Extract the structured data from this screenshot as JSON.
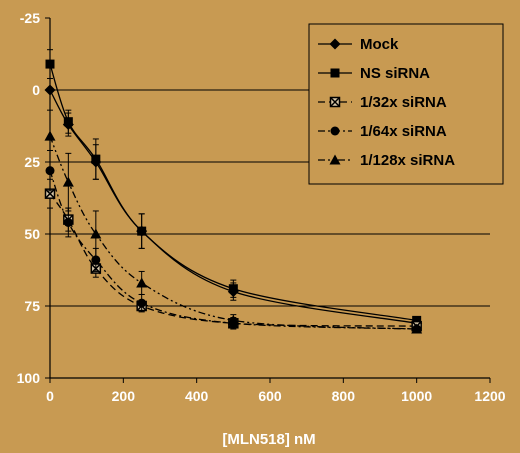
{
  "chart_data": {
    "type": "line",
    "title": "",
    "xlabel": "[MLN518] nM",
    "ylabel": "",
    "xlim": [
      0,
      1200
    ],
    "ylim": [
      -25,
      100
    ],
    "y_inverted": true,
    "xticks": [
      0,
      200,
      400,
      600,
      800,
      1000,
      1200
    ],
    "yticks": [
      -25,
      0,
      25,
      50,
      75,
      100
    ],
    "grid": "horizontal",
    "legend_position": "top-right",
    "colors": {
      "background": "#c89a52",
      "plot": "#c89a52",
      "lines": "#000000",
      "axes_text": "#ffffff"
    },
    "x": [
      0,
      50,
      125,
      250,
      500,
      1000
    ],
    "series": [
      {
        "name": "Mock",
        "marker": "diamond",
        "dash": "solid",
        "values": [
          0,
          12,
          25,
          49,
          70,
          81
        ],
        "errors": [
          0,
          4,
          6,
          6,
          3,
          1
        ]
      },
      {
        "name": "NS siRNA",
        "marker": "square",
        "dash": "solid",
        "values": [
          -9,
          11,
          24,
          49,
          69,
          80
        ],
        "errors": [
          5,
          4,
          7,
          6,
          3,
          1
        ]
      },
      {
        "name": "1/32x siRNA",
        "marker": "box-x",
        "dash": "dash",
        "values": [
          36,
          45,
          62,
          75,
          81,
          82
        ],
        "errors": [
          5,
          4,
          3,
          2,
          1,
          1
        ]
      },
      {
        "name": "1/64x siRNA",
        "marker": "circle",
        "dash": "dashdot",
        "values": [
          28,
          46,
          59,
          74,
          81,
          83
        ],
        "errors": [
          7,
          5,
          4,
          3,
          2,
          1
        ]
      },
      {
        "name": "1/128x siRNA",
        "marker": "triangle",
        "dash": "dashdotdot",
        "values": [
          16,
          32,
          50,
          67,
          80,
          83
        ],
        "errors": [
          9,
          10,
          8,
          4,
          2,
          1
        ]
      }
    ]
  }
}
